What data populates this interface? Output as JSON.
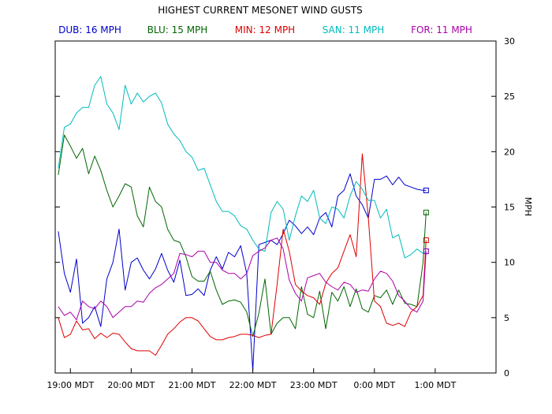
{
  "chart_data": {
    "type": "line",
    "title": "HIGHEST CURRENT MESONET WIND GUSTS",
    "ylabel": "MPH",
    "ylim": [
      0,
      30
    ],
    "yticks": [
      0,
      5,
      10,
      15,
      20,
      25,
      30
    ],
    "xlim": [
      18.75,
      26.0
    ],
    "xticks": [
      {
        "value": 19,
        "label": "19:00 MDT"
      },
      {
        "value": 20,
        "label": "20:00 MDT"
      },
      {
        "value": 21,
        "label": "21:00 MDT"
      },
      {
        "value": 22,
        "label": "22:00 MDT"
      },
      {
        "value": 23,
        "label": "23:00 MDT"
      },
      {
        "value": 24,
        "label": "0:00 MDT"
      },
      {
        "value": 25,
        "label": "1:00 MDT"
      }
    ],
    "grid": false,
    "legend_position": "top",
    "series": [
      {
        "name": "DUB",
        "legend": "DUB: 16 MPH",
        "color": "#0000cc",
        "x": [
          18.8,
          18.9,
          19.0,
          19.1,
          19.2,
          19.3,
          19.4,
          19.5,
          19.6,
          19.7,
          19.8,
          19.9,
          20.0,
          20.1,
          20.2,
          20.3,
          20.4,
          20.5,
          20.6,
          20.7,
          20.8,
          20.9,
          21.0,
          21.1,
          21.2,
          21.3,
          21.4,
          21.5,
          21.6,
          21.7,
          21.8,
          21.9,
          22.0,
          22.1,
          22.2,
          22.3,
          22.4,
          22.5,
          22.6,
          22.7,
          22.8,
          22.9,
          23.0,
          23.1,
          23.2,
          23.3,
          23.4,
          23.5,
          23.6,
          23.7,
          23.8,
          23.9,
          24.0,
          24.1,
          24.2,
          24.3,
          24.4,
          24.5,
          24.6,
          24.7,
          24.8,
          24.85
        ],
        "values": [
          12.8,
          9.0,
          7.3,
          10.3,
          4.5,
          5.0,
          6.0,
          4.2,
          8.5,
          10.0,
          13.0,
          7.5,
          10.0,
          10.4,
          9.3,
          8.5,
          9.4,
          10.8,
          9.3,
          8.2,
          10.2,
          7.0,
          7.1,
          7.6,
          7.0,
          9.3,
          10.5,
          9.4,
          10.9,
          10.5,
          11.5,
          9.0,
          0.2,
          11.6,
          11.8,
          12.0,
          11.6,
          12.6,
          13.8,
          13.3,
          12.6,
          13.2,
          12.5,
          14.0,
          14.5,
          13.2,
          16.0,
          16.5,
          18.0,
          16.0,
          15.2,
          14.0,
          17.5,
          17.5,
          17.8,
          17.0,
          17.7,
          17.0,
          16.8,
          16.6,
          16.5,
          16.5
        ]
      },
      {
        "name": "BLU",
        "legend": "BLU: 15 MPH",
        "color": "#006600",
        "x": [
          18.8,
          18.9,
          19.0,
          19.1,
          19.2,
          19.3,
          19.4,
          19.5,
          19.6,
          19.7,
          19.8,
          19.9,
          20.0,
          20.1,
          20.2,
          20.3,
          20.4,
          20.5,
          20.6,
          20.7,
          20.8,
          20.9,
          21.0,
          21.1,
          21.2,
          21.3,
          21.4,
          21.5,
          21.6,
          21.7,
          21.8,
          21.9,
          22.0,
          22.1,
          22.2,
          22.3,
          22.4,
          22.5,
          22.6,
          22.7,
          22.8,
          22.9,
          23.0,
          23.1,
          23.2,
          23.3,
          23.4,
          23.5,
          23.6,
          23.7,
          23.8,
          23.9,
          24.0,
          24.1,
          24.2,
          24.3,
          24.4,
          24.5,
          24.6,
          24.7,
          24.8,
          24.85
        ],
        "values": [
          17.9,
          21.5,
          20.5,
          19.4,
          20.3,
          18.0,
          19.6,
          18.3,
          16.5,
          15.0,
          16.0,
          17.1,
          16.8,
          14.2,
          13.2,
          16.8,
          15.5,
          15.0,
          13.0,
          12.0,
          11.8,
          10.5,
          8.7,
          8.3,
          8.3,
          9.2,
          7.5,
          6.2,
          6.5,
          6.6,
          6.4,
          5.5,
          3.3,
          5.4,
          8.5,
          3.5,
          4.5,
          5.0,
          5.0,
          4.0,
          7.8,
          5.3,
          5.0,
          7.4,
          4.0,
          7.3,
          6.5,
          7.8,
          6.0,
          7.6,
          5.8,
          5.5,
          7.0,
          6.8,
          7.5,
          6.2,
          7.5,
          6.3,
          6.2,
          6.0,
          10.0,
          14.5
        ]
      },
      {
        "name": "MIN",
        "legend": "MIN: 12 MPH",
        "color": "#dd0000",
        "x": [
          18.8,
          18.9,
          19.0,
          19.1,
          19.2,
          19.3,
          19.4,
          19.5,
          19.6,
          19.7,
          19.8,
          19.9,
          20.0,
          20.1,
          20.2,
          20.3,
          20.4,
          20.5,
          20.6,
          20.7,
          20.8,
          20.9,
          21.0,
          21.1,
          21.2,
          21.3,
          21.4,
          21.5,
          21.6,
          21.7,
          21.8,
          21.9,
          22.0,
          22.1,
          22.2,
          22.3,
          22.4,
          22.5,
          22.6,
          22.7,
          22.8,
          22.9,
          23.0,
          23.1,
          23.2,
          23.3,
          23.4,
          23.5,
          23.6,
          23.7,
          23.8,
          23.9,
          24.0,
          24.1,
          24.2,
          24.3,
          24.4,
          24.5,
          24.6,
          24.7,
          24.8,
          24.85
        ],
        "values": [
          5.0,
          3.2,
          3.5,
          4.7,
          3.9,
          4.0,
          3.1,
          3.6,
          3.2,
          3.6,
          3.5,
          2.8,
          2.2,
          2.0,
          2.0,
          2.0,
          1.6,
          2.5,
          3.5,
          4.0,
          4.6,
          5.0,
          5.0,
          4.7,
          4.0,
          3.3,
          3.0,
          3.0,
          3.2,
          3.3,
          3.5,
          3.5,
          3.4,
          3.2,
          3.4,
          3.5,
          8.0,
          13.0,
          11.0,
          8.0,
          7.4,
          7.0,
          6.8,
          6.2,
          8.1,
          9.0,
          9.5,
          11.0,
          12.5,
          10.5,
          19.8,
          14.0,
          6.5,
          6.0,
          4.5,
          4.3,
          4.5,
          4.2,
          5.5,
          6.0,
          7.0,
          12.0
        ]
      },
      {
        "name": "SAN",
        "legend": "SAN: 11 MPH",
        "color": "#00bbbb",
        "x": [
          18.8,
          18.9,
          19.0,
          19.1,
          19.2,
          19.3,
          19.4,
          19.5,
          19.6,
          19.7,
          19.8,
          19.9,
          20.0,
          20.1,
          20.2,
          20.3,
          20.4,
          20.5,
          20.6,
          20.7,
          20.8,
          20.9,
          21.0,
          21.1,
          21.2,
          21.3,
          21.4,
          21.5,
          21.6,
          21.7,
          21.8,
          21.9,
          22.0,
          22.1,
          22.2,
          22.3,
          22.4,
          22.5,
          22.6,
          22.7,
          22.8,
          22.9,
          23.0,
          23.1,
          23.2,
          23.3,
          23.4,
          23.5,
          23.6,
          23.7,
          23.8,
          23.9,
          24.0,
          24.1,
          24.2,
          24.3,
          24.4,
          24.5,
          24.6,
          24.7,
          24.8,
          24.85
        ],
        "values": [
          18.5,
          22.2,
          22.5,
          23.5,
          24.0,
          24.0,
          26.0,
          26.8,
          24.3,
          23.5,
          22.0,
          26.0,
          24.3,
          25.3,
          24.5,
          25.0,
          25.3,
          24.4,
          22.5,
          21.6,
          21.0,
          20.0,
          19.5,
          18.3,
          18.5,
          17.0,
          15.5,
          14.6,
          14.6,
          14.2,
          13.3,
          13.0,
          12.0,
          11.2,
          11.0,
          14.5,
          15.5,
          14.8,
          12.0,
          14.2,
          16.0,
          15.5,
          16.5,
          14.0,
          13.5,
          15.0,
          14.8,
          14.0,
          16.0,
          17.3,
          16.6,
          15.6,
          15.6,
          14.0,
          14.8,
          12.2,
          12.5,
          10.4,
          10.7,
          11.2,
          10.8,
          11.0
        ]
      },
      {
        "name": "FOR",
        "legend": "FOR: 11 MPH",
        "color": "#aa00aa",
        "x": [
          18.8,
          18.9,
          19.0,
          19.1,
          19.2,
          19.3,
          19.4,
          19.5,
          19.6,
          19.7,
          19.8,
          19.9,
          20.0,
          20.1,
          20.2,
          20.3,
          20.4,
          20.5,
          20.6,
          20.7,
          20.8,
          20.9,
          21.0,
          21.1,
          21.2,
          21.3,
          21.4,
          21.5,
          21.6,
          21.7,
          21.8,
          21.9,
          22.0,
          22.1,
          22.2,
          22.3,
          22.4,
          22.5,
          22.6,
          22.7,
          22.8,
          22.9,
          23.0,
          23.1,
          23.2,
          23.3,
          23.4,
          23.5,
          23.6,
          23.7,
          23.8,
          23.9,
          24.0,
          24.1,
          24.2,
          24.3,
          24.4,
          24.5,
          24.6,
          24.7,
          24.8,
          24.85
        ],
        "values": [
          6.0,
          5.2,
          5.5,
          4.8,
          6.5,
          6.0,
          5.8,
          6.5,
          6.0,
          5.0,
          5.5,
          6.0,
          6.0,
          6.5,
          6.4,
          7.2,
          7.7,
          8.0,
          8.5,
          9.0,
          10.8,
          10.7,
          10.5,
          11.0,
          11.0,
          10.0,
          10.0,
          9.3,
          9.0,
          9.0,
          8.5,
          9.0,
          10.6,
          11.0,
          11.3,
          12.0,
          12.2,
          11.2,
          8.4,
          7.2,
          6.5,
          8.6,
          8.8,
          9.0,
          8.2,
          7.8,
          7.5,
          8.2,
          8.0,
          7.3,
          7.5,
          7.4,
          8.5,
          9.2,
          9.0,
          8.3,
          7.0,
          6.5,
          5.8,
          5.5,
          6.5,
          11.0
        ]
      }
    ]
  }
}
